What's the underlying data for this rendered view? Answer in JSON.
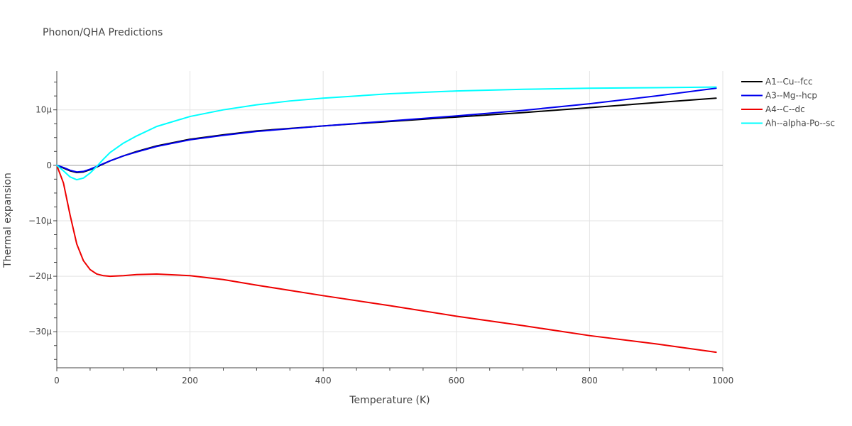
{
  "chart_data": {
    "type": "line",
    "title": "Phonon/QHA Predictions",
    "xlabel": "Temperature (K)",
    "ylabel": "Thermal expansion",
    "xlim": [
      0,
      1000
    ],
    "ylim": [
      -36.5,
      17
    ],
    "x_ticks": [
      0,
      200,
      400,
      600,
      800,
      1000
    ],
    "x_tick_labels": [
      "0",
      "200",
      "400",
      "600",
      "800",
      "1000"
    ],
    "y_ticks": [
      -30,
      -20,
      -10,
      0,
      10
    ],
    "y_tick_labels": [
      "−30µ",
      "−20µ",
      "−10µ",
      "0",
      "10µ"
    ],
    "grid": true,
    "legend_position": "top-right",
    "series": [
      {
        "name": "A1--Cu--fcc",
        "color": "#000000",
        "x": [
          0,
          10,
          20,
          30,
          40,
          50,
          60,
          80,
          100,
          120,
          150,
          200,
          250,
          300,
          400,
          500,
          600,
          700,
          800,
          900,
          990
        ],
        "y": [
          0,
          -0.5,
          -1.0,
          -1.3,
          -1.2,
          -0.8,
          -0.3,
          0.8,
          1.7,
          2.5,
          3.5,
          4.7,
          5.5,
          6.2,
          7.1,
          7.9,
          8.7,
          9.5,
          10.4,
          11.3,
          12.1
        ]
      },
      {
        "name": "A3--Mg--hcp",
        "color": "#0000ee",
        "x": [
          0,
          10,
          20,
          30,
          40,
          50,
          60,
          80,
          100,
          120,
          150,
          200,
          250,
          300,
          400,
          500,
          600,
          700,
          800,
          900,
          990
        ],
        "y": [
          0,
          -0.4,
          -0.9,
          -1.2,
          -1.1,
          -0.7,
          -0.2,
          0.8,
          1.7,
          2.4,
          3.4,
          4.6,
          5.4,
          6.1,
          7.1,
          8.0,
          8.9,
          9.9,
          11.1,
          12.5,
          13.9
        ]
      },
      {
        "name": "A4--C--dc",
        "color": "#ee0000",
        "x": [
          0,
          10,
          20,
          30,
          40,
          50,
          60,
          70,
          80,
          100,
          120,
          150,
          200,
          250,
          300,
          400,
          500,
          600,
          700,
          800,
          900,
          990
        ],
        "y": [
          0,
          -3.2,
          -9.0,
          -14.2,
          -17.2,
          -18.8,
          -19.6,
          -19.9,
          -20.0,
          -19.9,
          -19.7,
          -19.6,
          -19.9,
          -20.6,
          -21.6,
          -23.5,
          -25.3,
          -27.2,
          -28.9,
          -30.7,
          -32.2,
          -33.7
        ]
      },
      {
        "name": "Ah--alpha-Po--sc",
        "color": "#00ffff",
        "x": [
          0,
          10,
          20,
          30,
          40,
          50,
          60,
          70,
          80,
          100,
          120,
          150,
          200,
          250,
          300,
          350,
          400,
          500,
          600,
          700,
          800,
          900,
          990
        ],
        "y": [
          0,
          -1.0,
          -2.1,
          -2.6,
          -2.3,
          -1.4,
          -0.2,
          1.1,
          2.3,
          4.0,
          5.3,
          7.0,
          8.8,
          10.0,
          10.9,
          11.6,
          12.1,
          12.9,
          13.4,
          13.7,
          13.9,
          14.0,
          14.1
        ]
      }
    ]
  }
}
